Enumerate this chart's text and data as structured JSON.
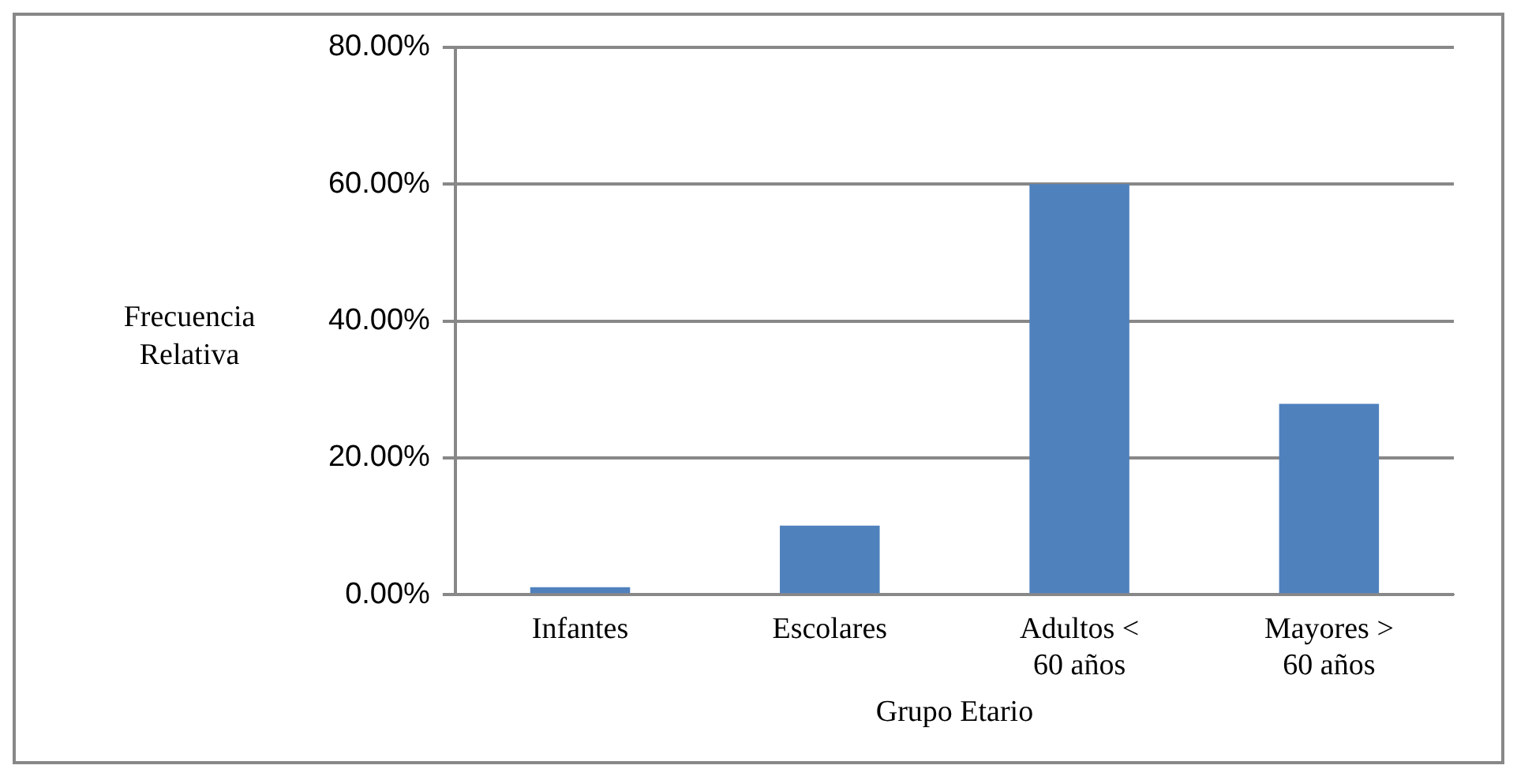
{
  "chart_data": {
    "type": "bar",
    "xlabel": "Grupo Etario",
    "ylabel": "Frecuencia Relativa",
    "categories": [
      "Infantes",
      "Escolares",
      "Adultos < 60 años",
      "Mayores > 60 años"
    ],
    "values": [
      1.1,
      10.1,
      60.0,
      27.9
    ],
    "color": "#4f81bd",
    "ylim": [
      0,
      80
    ],
    "yticks": [
      {
        "value": 0,
        "label": "0.00%"
      },
      {
        "value": 20,
        "label": "20.00%"
      },
      {
        "value": 40,
        "label": "40.00%"
      },
      {
        "value": 60,
        "label": "60.00%"
      },
      {
        "value": 80,
        "label": "80.00%"
      }
    ],
    "grid": "y",
    "legend": false
  }
}
